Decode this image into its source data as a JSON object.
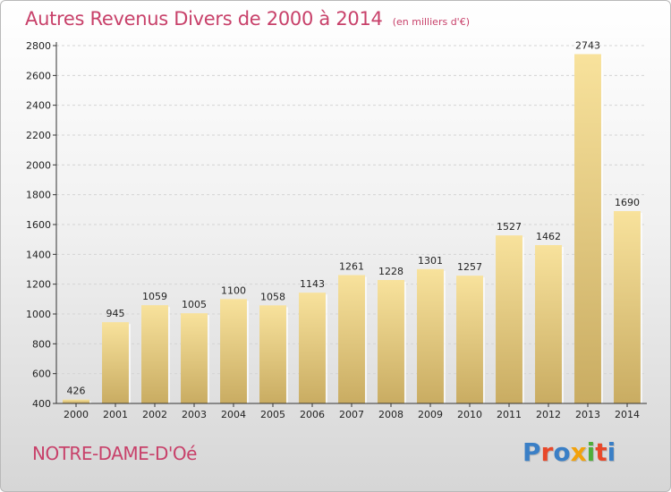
{
  "chart_data": {
    "type": "bar",
    "title": "Autres Revenus Divers de 2000 à 2014",
    "subtitle": "(en milliers d'€)",
    "categories": [
      "2000",
      "2001",
      "2002",
      "2003",
      "2004",
      "2005",
      "2006",
      "2007",
      "2008",
      "2009",
      "2010",
      "2011",
      "2012",
      "2013",
      "2014"
    ],
    "values": [
      426,
      945,
      1059,
      1005,
      1100,
      1058,
      1143,
      1261,
      1228,
      1301,
      1257,
      1527,
      1462,
      2743,
      1690
    ],
    "ylim": [
      400,
      2800
    ],
    "yticks": [
      400,
      600,
      800,
      1000,
      1200,
      1400,
      1600,
      1800,
      2000,
      2200,
      2400,
      2600,
      2800
    ],
    "grid": true,
    "bar_color_top": "#f8e29c",
    "bar_color_bottom": "#c9ac62"
  },
  "footer": {
    "commune": "NOTRE-DAME-D'Oé",
    "logo": "Proxiti"
  },
  "colors": {
    "title": "#c8416a",
    "logo_letters": [
      "#3a7fc6",
      "#e8482a",
      "#3a7fc6",
      "#f2a20c",
      "#4fae3a",
      "#e8482a",
      "#3a7fc6"
    ]
  }
}
